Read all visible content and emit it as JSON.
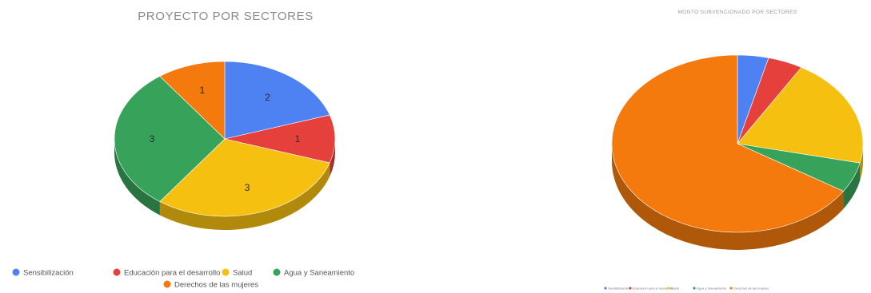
{
  "colors": {
    "blue": "#4e82f2",
    "red": "#e5403b",
    "yellow": "#f6c010",
    "green": "#37a35a",
    "orange": "#f57a0e"
  },
  "chart_data": [
    {
      "type": "pie",
      "style": "3d",
      "title": "PROYECTO POR SECTORES",
      "legend_position": "bottom",
      "labels": [
        "Sensibilización",
        "Educación para el desarrollo",
        "Salud",
        "Agua y Saneamiento",
        "Derechos de las mujeres"
      ],
      "values": [
        2,
        1,
        3,
        3,
        1
      ],
      "data_labels": [
        "2",
        "1",
        "3",
        "3",
        "1"
      ],
      "colors": [
        "#4e82f2",
        "#e5403b",
        "#f6c010",
        "#37a35a",
        "#f57a0e"
      ]
    },
    {
      "type": "pie",
      "style": "3d",
      "title": "MONTO SUBVENCIONADO POR SECTORES",
      "legend_position": "bottom",
      "labels": [
        "Sensibilización",
        "Educación para el desarrollo",
        "Salud",
        "Agua y Saneamiento",
        "Derechos de las mujeres"
      ],
      "values": [
        4,
        4.5,
        20,
        5.5,
        66
      ],
      "data_labels": [
        "",
        "",
        "",
        "",
        ""
      ],
      "colors": [
        "#4e82f2",
        "#e5403b",
        "#f6c010",
        "#37a35a",
        "#f57a0e"
      ]
    }
  ]
}
